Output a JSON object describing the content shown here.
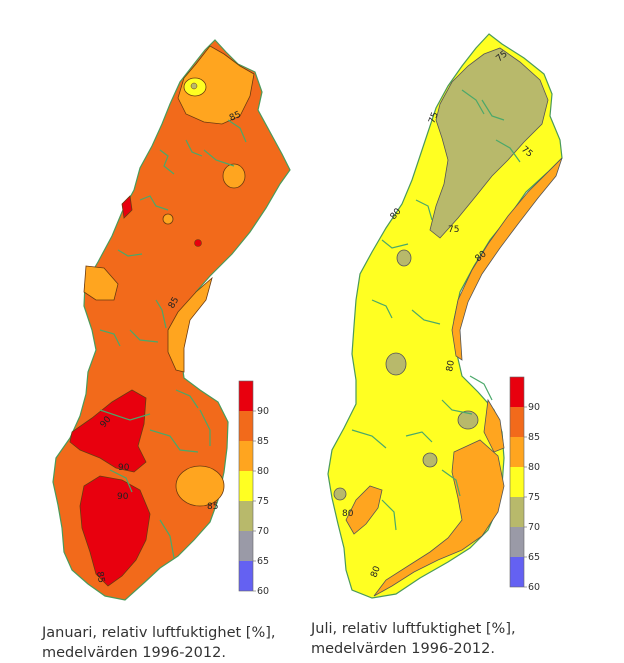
{
  "maps": [
    {
      "id": "januari",
      "caption_line1": "Januari, relativ luftfuktighet [%],",
      "caption_line2": "medelvärden 1996-2012.",
      "base_color": "#f26a1b",
      "contour_labels": [
        "85",
        "85",
        "90",
        "90",
        "90",
        "85",
        "85"
      ],
      "legend": {
        "ticks": [
          "90",
          "85",
          "80",
          "75",
          "70",
          "65",
          "60"
        ],
        "colors": [
          "#e8000e",
          "#f26a1b",
          "#ffa51f",
          "#ffff22",
          "#b8b96b",
          "#9a9aa7",
          "#6461f2"
        ]
      }
    },
    {
      "id": "juli",
      "caption_line1": "Juli, relativ luftfuktighet [%],",
      "caption_line2": "medelvärden 1996-2012.",
      "base_color": "#ffff22",
      "contour_labels": [
        "75",
        "75",
        "75",
        "75",
        "80",
        "80",
        "80",
        "80",
        "80"
      ],
      "legend": {
        "ticks": [
          "90",
          "85",
          "80",
          "75",
          "70",
          "65",
          "60"
        ],
        "colors": [
          "#e8000e",
          "#f26a1b",
          "#ffa51f",
          "#ffff22",
          "#b8b96b",
          "#9a9aa7",
          "#6461f2"
        ]
      }
    }
  ]
}
